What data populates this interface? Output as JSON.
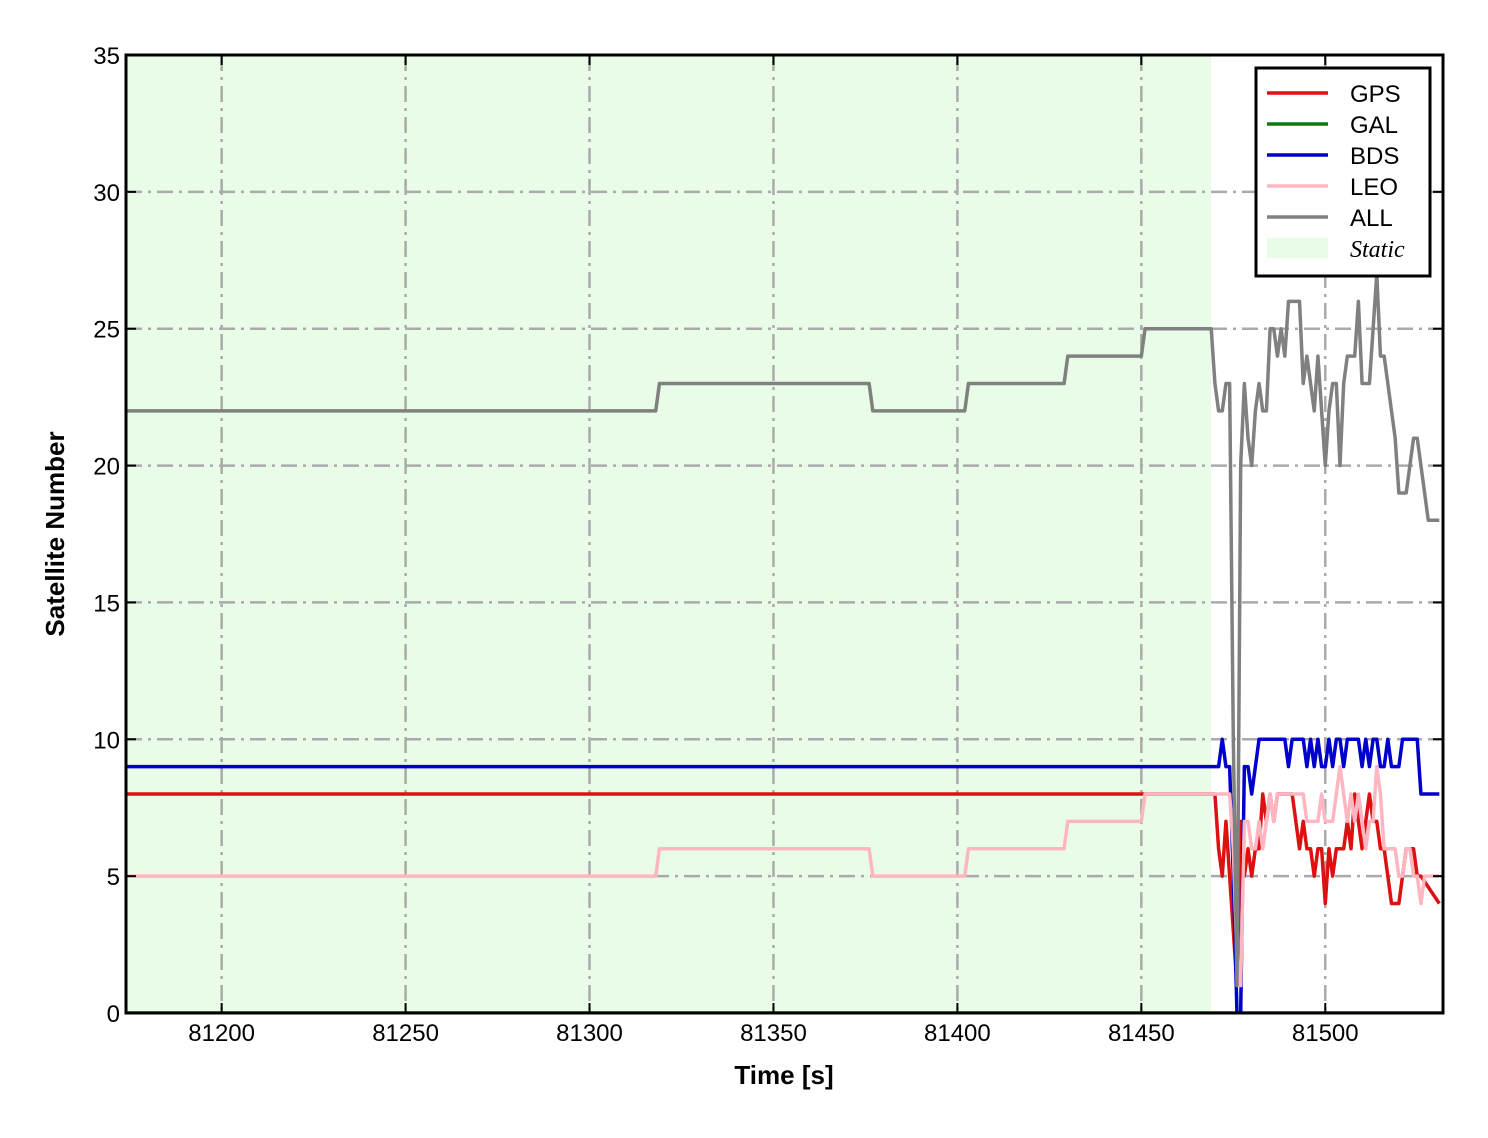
{
  "chart_data": {
    "type": "line",
    "xlabel": "Time [s]",
    "ylabel": "Satellite Number",
    "xlim": [
      81174,
      81532
    ],
    "ylim": [
      0,
      35
    ],
    "xticks": [
      81200,
      81250,
      81300,
      81350,
      81400,
      81450,
      81500
    ],
    "yticks": [
      0,
      5,
      10,
      15,
      20,
      25,
      30,
      35
    ],
    "grid": true,
    "legend": "upper right",
    "span": {
      "name": "Static",
      "color": "#e8fce8",
      "x": [
        81174,
        81469
      ]
    },
    "series": [
      {
        "name": "GPS",
        "color": "#dd1111",
        "x": [
          81174,
          81470,
          81471,
          81472,
          81473,
          81474,
          81475,
          81476,
          81477,
          81478,
          81479,
          81480,
          81481,
          81482,
          81483,
          81484,
          81485,
          81486,
          81487,
          81488,
          81489,
          81490,
          81491,
          81492,
          81493,
          81494,
          81495,
          81496,
          81497,
          81498,
          81499,
          81500,
          81501,
          81502,
          81503,
          81504,
          81505,
          81506,
          81507,
          81508,
          81509,
          81510,
          81511,
          81512,
          81513,
          81514,
          81515,
          81516,
          81517,
          81518,
          81519,
          81520,
          81521,
          81522,
          81523,
          81524,
          81525,
          81526,
          81531
        ],
        "values": [
          8,
          8,
          6,
          5,
          7,
          5,
          3,
          1,
          7,
          5,
          6,
          5,
          6,
          6,
          8,
          7,
          8,
          7,
          8,
          8,
          8,
          8,
          8,
          7,
          6,
          7,
          6,
          6,
          5,
          6,
          6,
          4,
          6,
          5,
          6,
          6,
          6,
          7,
          6,
          8,
          7,
          6,
          7,
          8,
          7,
          7,
          6,
          6,
          5,
          4,
          4,
          4,
          5,
          6,
          6,
          6,
          5,
          5,
          4
        ]
      },
      {
        "name": "GAL",
        "color": "#117711",
        "x": [
          81174,
          81532
        ],
        "values": [
          0,
          0
        ]
      },
      {
        "name": "BDS",
        "color": "#0000cc",
        "x": [
          81174,
          81471,
          81472,
          81473,
          81474,
          81475,
          81476,
          81477,
          81478,
          81479,
          81480,
          81481,
          81482,
          81483,
          81484,
          81485,
          81486,
          81487,
          81488,
          81489,
          81490,
          81491,
          81492,
          81493,
          81494,
          81495,
          81496,
          81497,
          81498,
          81499,
          81500,
          81501,
          81502,
          81503,
          81504,
          81505,
          81506,
          81507,
          81508,
          81509,
          81510,
          81511,
          81512,
          81513,
          81514,
          81515,
          81516,
          81517,
          81518,
          81519,
          81520,
          81521,
          81522,
          81523,
          81524,
          81525,
          81526,
          81531
        ],
        "values": [
          9,
          9,
          10,
          9,
          9,
          5,
          0,
          0,
          9,
          9,
          8,
          9,
          10,
          10,
          10,
          10,
          10,
          10,
          10,
          10,
          9,
          10,
          10,
          10,
          10,
          9,
          10,
          9,
          10,
          9,
          9,
          10,
          9,
          10,
          10,
          9,
          10,
          10,
          10,
          10,
          9,
          10,
          9,
          10,
          10,
          9,
          9,
          10,
          9,
          9,
          9,
          10,
          10,
          10,
          10,
          10,
          8,
          8
        ]
      },
      {
        "name": "LEO",
        "color": "#ffb6c1",
        "x": [
          81174,
          81318,
          81319,
          81376,
          81377,
          81402,
          81403,
          81429,
          81430,
          81450,
          81451,
          81474,
          81475,
          81476,
          81477,
          81478,
          81479,
          81480,
          81481,
          81482,
          81483,
          81484,
          81485,
          81486,
          81487,
          81488,
          81489,
          81490,
          81491,
          81492,
          81493,
          81494,
          81495,
          81496,
          81497,
          81498,
          81499,
          81500,
          81501,
          81502,
          81503,
          81504,
          81505,
          81506,
          81507,
          81508,
          81509,
          81510,
          81511,
          81512,
          81513,
          81514,
          81515,
          81516,
          81517,
          81518,
          81519,
          81520,
          81521,
          81522,
          81523,
          81524,
          81525,
          81526,
          81527,
          81531
        ],
        "values": [
          5,
          5,
          6,
          6,
          5,
          5,
          6,
          6,
          7,
          7,
          8,
          8,
          6,
          2,
          1,
          7,
          7,
          6,
          6,
          7,
          6,
          7,
          8,
          7,
          8,
          8,
          8,
          8,
          8,
          8,
          8,
          8,
          7,
          7,
          7,
          7,
          8,
          7,
          7,
          7,
          8,
          9,
          8,
          7,
          8,
          7,
          8,
          7,
          6,
          7,
          7,
          9,
          8,
          6,
          6,
          6,
          6,
          5,
          5,
          6,
          6,
          5,
          5,
          4,
          5,
          5
        ]
      },
      {
        "name": "ALL",
        "color": "#808080",
        "x": [
          81174,
          81318,
          81319,
          81376,
          81377,
          81402,
          81403,
          81429,
          81430,
          81450,
          81451,
          81469,
          81470,
          81471,
          81472,
          81473,
          81474,
          81475,
          81476,
          81477,
          81478,
          81479,
          81480,
          81481,
          81482,
          81483,
          81484,
          81485,
          81486,
          81487,
          81488,
          81489,
          81490,
          81491,
          81492,
          81493,
          81494,
          81495,
          81496,
          81497,
          81498,
          81499,
          81500,
          81501,
          81502,
          81503,
          81504,
          81505,
          81506,
          81507,
          81508,
          81509,
          81510,
          81511,
          81512,
          81513,
          81514,
          81515,
          81516,
          81517,
          81518,
          81519,
          81520,
          81521,
          81522,
          81523,
          81524,
          81525,
          81526,
          81527,
          81528,
          81529,
          81531
        ],
        "values": [
          22,
          22,
          23,
          23,
          22,
          22,
          23,
          23,
          24,
          24,
          25,
          25,
          23,
          22,
          22,
          23,
          23,
          10,
          1,
          20,
          23,
          21,
          20,
          22,
          23,
          22,
          22,
          25,
          25,
          24,
          25,
          24,
          26,
          26,
          26,
          26,
          23,
          24,
          23,
          22,
          24,
          22,
          20,
          22,
          23,
          23,
          20,
          23,
          24,
          24,
          24,
          26,
          23,
          23,
          23,
          25,
          27,
          24,
          24,
          23,
          22,
          21,
          19,
          19,
          19,
          20,
          21,
          21,
          20,
          19,
          18,
          18,
          18
        ]
      }
    ]
  }
}
